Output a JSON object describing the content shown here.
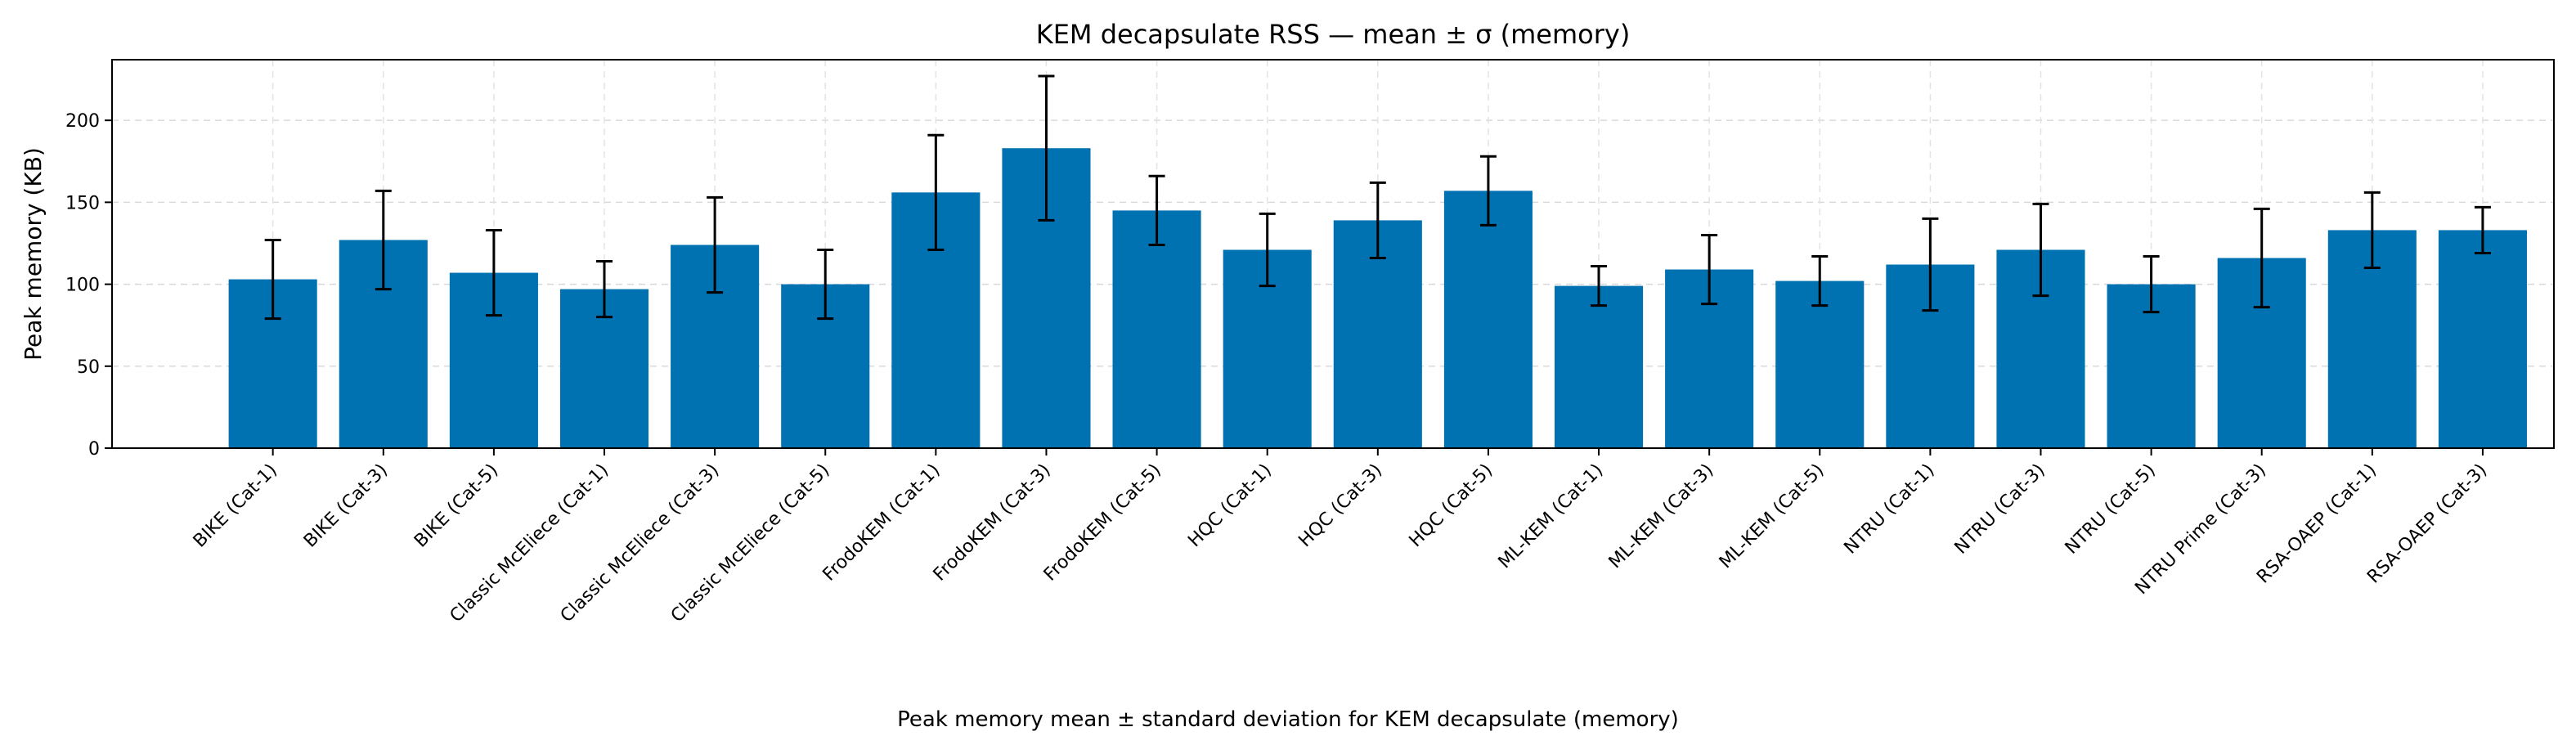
{
  "chart_data": {
    "type": "bar",
    "title": "KEM decapsulate RSS — mean ± σ (memory)",
    "xlabel": "",
    "ylabel": "Peak memory (KB)",
    "caption": "Peak memory mean ± standard deviation for KEM decapsulate (memory)",
    "ylim": [
      0,
      237
    ],
    "yticks": [
      0,
      50,
      100,
      150,
      200
    ],
    "grid": true,
    "bar_color": "#0072b2",
    "categories": [
      "BIKE (Cat-1)",
      "BIKE (Cat-3)",
      "BIKE (Cat-5)",
      "Classic McEliece (Cat-1)",
      "Classic McEliece (Cat-3)",
      "Classic McEliece (Cat-5)",
      "FrodoKEM (Cat-1)",
      "FrodoKEM (Cat-3)",
      "FrodoKEM (Cat-5)",
      "HQC (Cat-1)",
      "HQC (Cat-3)",
      "HQC (Cat-5)",
      "ML-KEM (Cat-1)",
      "ML-KEM (Cat-3)",
      "ML-KEM (Cat-5)",
      "NTRU (Cat-1)",
      "NTRU (Cat-3)",
      "NTRU (Cat-5)",
      "NTRU Prime (Cat-3)",
      "RSA-OAEP (Cat-1)",
      "RSA-OAEP (Cat-3)"
    ],
    "values": [
      103,
      127,
      107,
      97,
      124,
      100,
      156,
      183,
      145,
      121,
      139,
      157,
      99,
      109,
      102,
      112,
      121,
      100,
      116,
      133,
      133
    ],
    "errors": [
      24,
      30,
      26,
      17,
      29,
      21,
      35,
      44,
      21,
      22,
      23,
      21,
      12,
      21,
      15,
      28,
      28,
      17,
      30,
      23,
      14
    ]
  }
}
